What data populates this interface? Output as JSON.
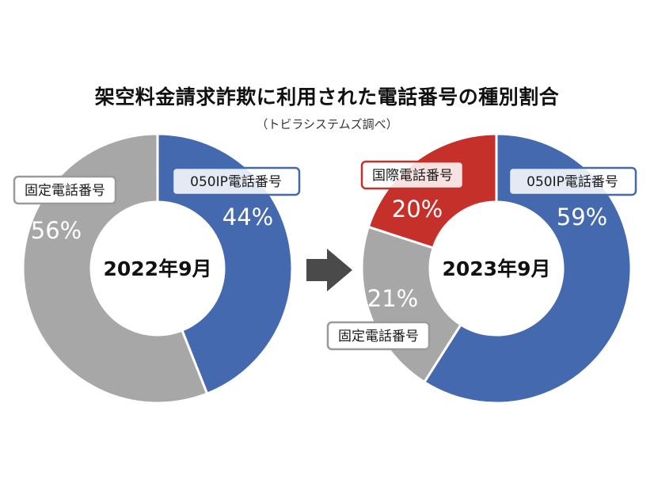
{
  "title": "架空料金請求詐欺に利用された電話番号の種別割合",
  "subtitle": "（トビラシステムズ調べ）",
  "colors": {
    "ip": "#4569ae",
    "fixed": "#a7a7a7",
    "intl": "#c6302a",
    "arrow": "#4a4a4a"
  },
  "chart_data": [
    {
      "type": "pie",
      "center_label": "2022年9月",
      "series": [
        {
          "name": "050IP電話番号",
          "value": 44,
          "display": "44%",
          "color": "#4569ae"
        },
        {
          "name": "固定電話番号",
          "value": 56,
          "display": "56%",
          "color": "#a7a7a7"
        }
      ]
    },
    {
      "type": "pie",
      "center_label": "2023年9月",
      "series": [
        {
          "name": "050IP電話番号",
          "value": 59,
          "display": "59%",
          "color": "#4569ae"
        },
        {
          "name": "固定電話番号",
          "value": 21,
          "display": "21%",
          "color": "#a7a7a7"
        },
        {
          "name": "国際電話番号",
          "value": 20,
          "display": "20%",
          "color": "#c6302a"
        }
      ]
    }
  ]
}
